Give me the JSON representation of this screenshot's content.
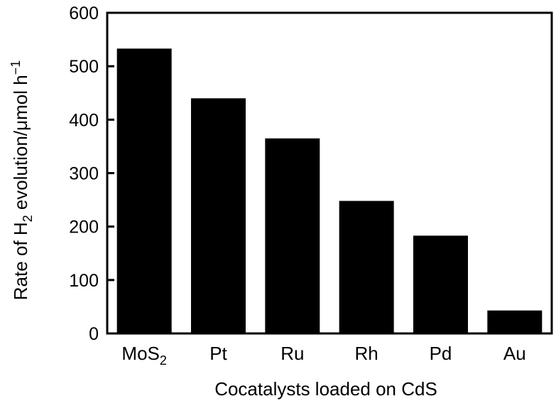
{
  "chart_data": {
    "type": "bar",
    "title": "",
    "xlabel": "Cocatalysts loaded on CdS",
    "ylabel": {
      "prefix": "Rate of H",
      "sub": "2",
      "middle": " evolution/μmol h",
      "sup": "−1"
    },
    "categories": [
      {
        "main": "MoS",
        "sub": "2"
      },
      {
        "main": "Pt",
        "sub": ""
      },
      {
        "main": "Ru",
        "sub": ""
      },
      {
        "main": "Rh",
        "sub": ""
      },
      {
        "main": "Pd",
        "sub": ""
      },
      {
        "main": "Au",
        "sub": ""
      }
    ],
    "values": [
      533,
      440,
      365,
      248,
      183,
      43
    ],
    "ylim": [
      0,
      600
    ],
    "yticks": [
      "0",
      "100",
      "200",
      "300",
      "400",
      "500",
      "600"
    ],
    "bar_color": "#000000",
    "grid": false,
    "legend": "none"
  }
}
